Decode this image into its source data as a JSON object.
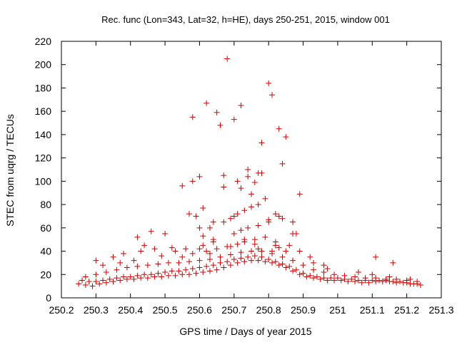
{
  "chart_data": {
    "type": "scatter",
    "title": "Rec. func (Lon=343, Lat=32, h=HE), days 250-251, 2015, window 001",
    "xlabel": "GPS time / Days of year 2015",
    "ylabel": "STEC from uqrg / TECUs",
    "xlim": [
      250.2,
      251.3
    ],
    "ylim": [
      0,
      220
    ],
    "xticks": [
      "250.2",
      "250.3",
      "250.4",
      "250.5",
      "250.6",
      "250.7",
      "250.8",
      "250.9",
      "251",
      "251.1",
      "251.2",
      "251.3"
    ],
    "yticks": [
      "0",
      "20",
      "40",
      "60",
      "80",
      "100",
      "120",
      "140",
      "160",
      "180",
      "200",
      "220"
    ],
    "grid": false,
    "legend": "none",
    "marker": "plus",
    "color": "#cc0000",
    "x": [
      250.25,
      250.27,
      250.29,
      250.31,
      250.33,
      250.35,
      250.37,
      250.39,
      250.41,
      250.43,
      250.45,
      250.47,
      250.49,
      250.51,
      250.53,
      250.55,
      250.57,
      250.59,
      250.61,
      250.63,
      250.65,
      250.67,
      250.69,
      250.71,
      250.73,
      250.75,
      250.77,
      250.79,
      250.81,
      250.83,
      250.85,
      250.87,
      250.89,
      250.91,
      250.93,
      250.95,
      250.97,
      250.99,
      251.01,
      251.03,
      251.05,
      251.07,
      251.09,
      251.11,
      251.13,
      251.15,
      251.17,
      251.19,
      251.21,
      251.23,
      250.26,
      250.28,
      250.3,
      250.32,
      250.34,
      250.36,
      250.38,
      250.4,
      250.42,
      250.44,
      250.46,
      250.48,
      250.5,
      250.52,
      250.54,
      250.56,
      250.58,
      250.6,
      250.62,
      250.64,
      250.66,
      250.68,
      250.7,
      250.72,
      250.74,
      250.76,
      250.78,
      250.8,
      250.82,
      250.84,
      250.86,
      250.88,
      250.9,
      250.92,
      250.94,
      250.96,
      250.98,
      251.0,
      251.02,
      251.04,
      251.06,
      251.08,
      251.1,
      251.12,
      251.14,
      251.16,
      251.18,
      251.2,
      251.22,
      251.24,
      250.27,
      250.3,
      250.33,
      250.36,
      250.39,
      250.42,
      250.45,
      250.48,
      250.51,
      250.54,
      250.57,
      250.6,
      250.63,
      250.66,
      250.69,
      250.72,
      250.75,
      250.78,
      250.81,
      250.84,
      250.87,
      250.9,
      250.93,
      250.96,
      250.99,
      251.02,
      251.05,
      251.08,
      251.11,
      251.14,
      251.17,
      251.2,
      251.23,
      250.3,
      250.35,
      250.38,
      250.43,
      250.47,
      250.52,
      250.55,
      250.58,
      250.62,
      250.65,
      250.68,
      250.71,
      250.73,
      250.76,
      250.79,
      250.82,
      250.86,
      250.89,
      250.93,
      250.97,
      251.06,
      251.1,
      251.15,
      251.21,
      250.32,
      250.37,
      250.41,
      250.44,
      250.49,
      250.53,
      250.56,
      250.61,
      250.64,
      250.7,
      250.72,
      250.74,
      250.77,
      250.8,
      250.83,
      250.87,
      250.92,
      250.96,
      251.11,
      251.16,
      250.42,
      250.46,
      250.5,
      250.59,
      250.63,
      250.67,
      250.69,
      250.71,
      250.73,
      250.75,
      250.77,
      250.79,
      250.82,
      250.84,
      250.88,
      250.58,
      250.6,
      250.62,
      250.65,
      250.68,
      250.7,
      250.72,
      250.74,
      250.76,
      250.78,
      250.8,
      250.83,
      250.85,
      250.89,
      250.55,
      250.58,
      250.61,
      250.64,
      250.67,
      250.71,
      250.74,
      250.77,
      250.81,
      250.84,
      250.87,
      250.6,
      250.66,
      250.72,
      250.75,
      250.78,
      250.82,
      250.57,
      250.61,
      250.64,
      250.67,
      250.7,
      250.73,
      250.77,
      250.8,
      250.85,
      250.6,
      250.63,
      250.69,
      250.76,
      250.81,
      250.83
    ],
    "y": [
      12,
      11,
      10,
      12,
      13,
      14,
      15,
      16,
      16,
      17,
      17,
      18,
      18,
      19,
      19,
      20,
      20,
      21,
      22,
      23,
      24,
      26,
      28,
      30,
      31,
      32,
      32,
      31,
      30,
      28,
      26,
      23,
      20,
      18,
      17,
      16,
      15,
      15,
      15,
      14,
      14,
      13,
      13,
      14,
      14,
      14,
      13,
      13,
      12,
      12,
      15,
      14,
      14,
      15,
      16,
      17,
      18,
      18,
      19,
      20,
      20,
      21,
      22,
      23,
      23,
      24,
      25,
      26,
      27,
      28,
      30,
      31,
      33,
      34,
      35,
      36,
      35,
      33,
      31,
      29,
      27,
      24,
      21,
      19,
      18,
      17,
      17,
      17,
      16,
      16,
      15,
      15,
      15,
      15,
      15,
      14,
      14,
      13,
      12,
      11,
      18,
      20,
      22,
      24,
      26,
      27,
      28,
      29,
      30,
      30,
      31,
      32,
      33,
      35,
      37,
      39,
      40,
      40,
      38,
      35,
      32,
      28,
      24,
      22,
      20,
      19,
      18,
      17,
      17,
      16,
      16,
      15,
      14,
      32,
      35,
      38,
      40,
      42,
      43,
      35,
      38,
      40,
      42,
      44,
      46,
      48,
      50,
      52,
      48,
      45,
      40,
      30,
      25,
      22,
      20,
      18,
      16,
      28,
      30,
      32,
      45,
      36,
      40,
      42,
      45,
      48,
      55,
      58,
      60,
      62,
      65,
      70,
      55,
      35,
      28,
      35,
      30,
      52,
      57,
      55,
      70,
      60,
      65,
      68,
      72,
      75,
      78,
      80,
      85,
      72,
      68,
      55,
      155,
      104,
      167,
      159,
      205,
      153,
      165,
      110,
      99,
      133,
      184,
      145,
      138,
      89,
      96,
      100,
      77,
      65,
      105,
      100,
      104,
      107,
      174,
      115,
      65,
      60,
      148,
      94,
      89,
      107,
      45,
      72,
      53,
      50,
      95,
      70,
      50,
      42,
      67,
      40,
      42,
      38,
      44,
      46,
      40,
      43
    ]
  }
}
